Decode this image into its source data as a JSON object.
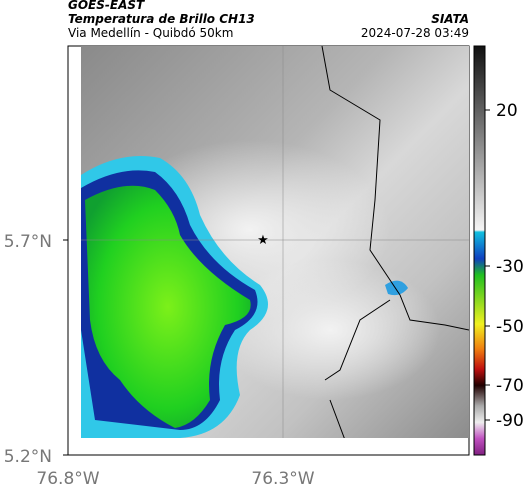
{
  "header": {
    "title": "GOES-EAST",
    "subtitle": "Temperatura de Brillo CH13",
    "location": "Via Medellín - Quibdó 50km",
    "source": "SIATA",
    "timestamp": "2024-07-28 03:49"
  },
  "map": {
    "yticks": [
      "5.7°N",
      "5.2°N"
    ],
    "xticks": [
      "76.8°W",
      "76.3°W"
    ]
  },
  "colorbar": {
    "ticks": [
      "20",
      "-30",
      "-50",
      "-70",
      "-90"
    ]
  }
}
